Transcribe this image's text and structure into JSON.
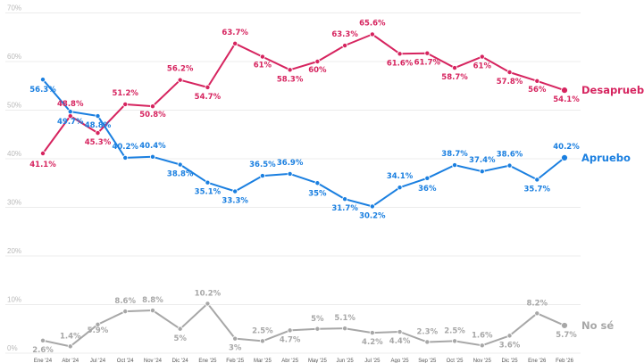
{
  "chart_data": {
    "type": "line",
    "categories": [
      "Ene '24",
      "Abr '24",
      "Jul '24",
      "Oct '24",
      "Nov '24",
      "Dic '24",
      "Ene '25",
      "Feb '25",
      "Mar '25",
      "Abr '25",
      "May '25",
      "Jun '25",
      "Jul '25",
      "Ago '25",
      "Sep '25",
      "Oct '25",
      "Nov '25",
      "Dic '25",
      "Ene '26",
      "Feb '26"
    ],
    "y_ticks": [
      "0%",
      "10%",
      "20%",
      "30%",
      "40%",
      "50%",
      "60%",
      "70%"
    ],
    "ylim": [
      0,
      70
    ],
    "grid": true,
    "series": [
      {
        "name": "Desapruebo",
        "color": "#d6245f",
        "values": [
          41.1,
          48.8,
          45.3,
          51.2,
          50.8,
          56.2,
          54.7,
          63.7,
          61,
          58.3,
          60,
          63.3,
          65.6,
          61.6,
          61.7,
          58.7,
          61,
          57.8,
          56,
          54.1
        ],
        "labels": [
          "41.1%",
          "48.8%",
          "45.3%",
          "51.2%",
          "50.8%",
          "56.2%",
          "54.7%",
          "63.7%",
          "61%",
          "58.3%",
          "60%",
          "63.3%",
          "65.6%",
          "61.6%",
          "61.7%",
          "58.7%",
          "61%",
          "57.8%",
          "56%",
          "54.1%"
        ]
      },
      {
        "name": "Apruebo",
        "color": "#1a7fe0",
        "values": [
          56.3,
          49.7,
          48.8,
          40.2,
          40.4,
          38.8,
          35.1,
          33.3,
          36.5,
          36.9,
          35,
          31.7,
          30.2,
          34.1,
          36,
          38.7,
          37.4,
          38.6,
          35.7,
          40.2
        ],
        "labels": [
          "56.3%",
          "49.7%",
          "48.8%",
          "40.2%",
          "40.4%",
          "38.8%",
          "35.1%",
          "33.3%",
          "36.5%",
          "36.9%",
          "35%",
          "31.7%",
          "30.2%",
          "34.1%",
          "36%",
          "38.7%",
          "37.4%",
          "38.6%",
          "35.7%",
          "40.2%"
        ]
      },
      {
        "name": "No sé",
        "color": "#a7a7a7",
        "values": [
          2.6,
          1.4,
          5.9,
          8.6,
          8.8,
          5,
          10.2,
          3,
          2.5,
          4.7,
          5,
          5.1,
          4.2,
          4.4,
          2.3,
          2.5,
          1.6,
          3.6,
          8.2,
          5.7
        ],
        "labels": [
          "2.6%",
          "1.4%",
          "5.9%",
          "8.6%",
          "8.8%",
          "5%",
          "10.2%",
          "3%",
          "2.5%",
          "4.7%",
          "5%",
          "5.1%",
          "4.2%",
          "4.4%",
          "2.3%",
          "2.5%",
          "1.6%",
          "3.6%",
          "8.2%",
          "5.7%"
        ]
      }
    ]
  }
}
